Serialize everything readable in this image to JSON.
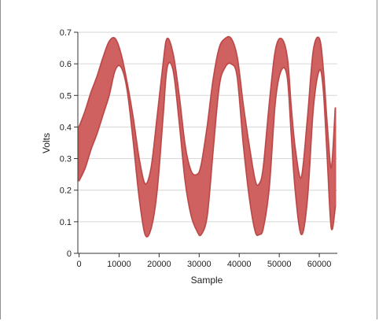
{
  "chart_data": {
    "type": "area",
    "title": "",
    "xlabel": "Sample",
    "ylabel": "Volts",
    "xlim": [
      -300,
      64500
    ],
    "ylim": [
      0,
      0.7
    ],
    "xticks": [
      0,
      10000,
      20000,
      30000,
      40000,
      50000,
      60000
    ],
    "yticks": [
      0,
      0.1,
      0.2,
      0.3,
      0.4,
      0.5,
      0.6,
      0.7
    ],
    "grid": "horizontal",
    "series": [
      {
        "color": "#cd5c5c",
        "x": [
          0,
          1500,
          3000,
          4500,
          6000,
          7500,
          9000,
          10500,
          12000,
          13500,
          15000,
          16500,
          18000,
          19500,
          21000,
          22000,
          23500,
          25000,
          26500,
          28000,
          29500,
          30500,
          32000,
          33500,
          35000,
          36500,
          38000,
          39500,
          41000,
          42500,
          44000,
          45000,
          46000,
          47500,
          49000,
          50500,
          52000,
          53000,
          54000,
          55500,
          57000,
          58500,
          60000,
          61000,
          62000,
          63000,
          64000
        ],
        "upper": [
          0.4,
          0.45,
          0.51,
          0.56,
          0.62,
          0.67,
          0.68,
          0.63,
          0.54,
          0.43,
          0.3,
          0.22,
          0.27,
          0.43,
          0.6,
          0.68,
          0.63,
          0.5,
          0.34,
          0.26,
          0.25,
          0.28,
          0.4,
          0.55,
          0.65,
          0.68,
          0.68,
          0.62,
          0.47,
          0.34,
          0.23,
          0.22,
          0.27,
          0.47,
          0.64,
          0.68,
          0.62,
          0.46,
          0.33,
          0.24,
          0.42,
          0.64,
          0.68,
          0.58,
          0.4,
          0.27,
          0.46
        ],
        "lower": [
          0.23,
          0.27,
          0.33,
          0.38,
          0.44,
          0.5,
          0.58,
          0.59,
          0.52,
          0.36,
          0.18,
          0.06,
          0.08,
          0.2,
          0.44,
          0.59,
          0.58,
          0.42,
          0.23,
          0.12,
          0.07,
          0.06,
          0.12,
          0.33,
          0.53,
          0.59,
          0.6,
          0.56,
          0.35,
          0.18,
          0.07,
          0.06,
          0.08,
          0.21,
          0.48,
          0.58,
          0.56,
          0.38,
          0.2,
          0.06,
          0.17,
          0.46,
          0.58,
          0.52,
          0.3,
          0.08,
          0.15
        ]
      }
    ]
  }
}
